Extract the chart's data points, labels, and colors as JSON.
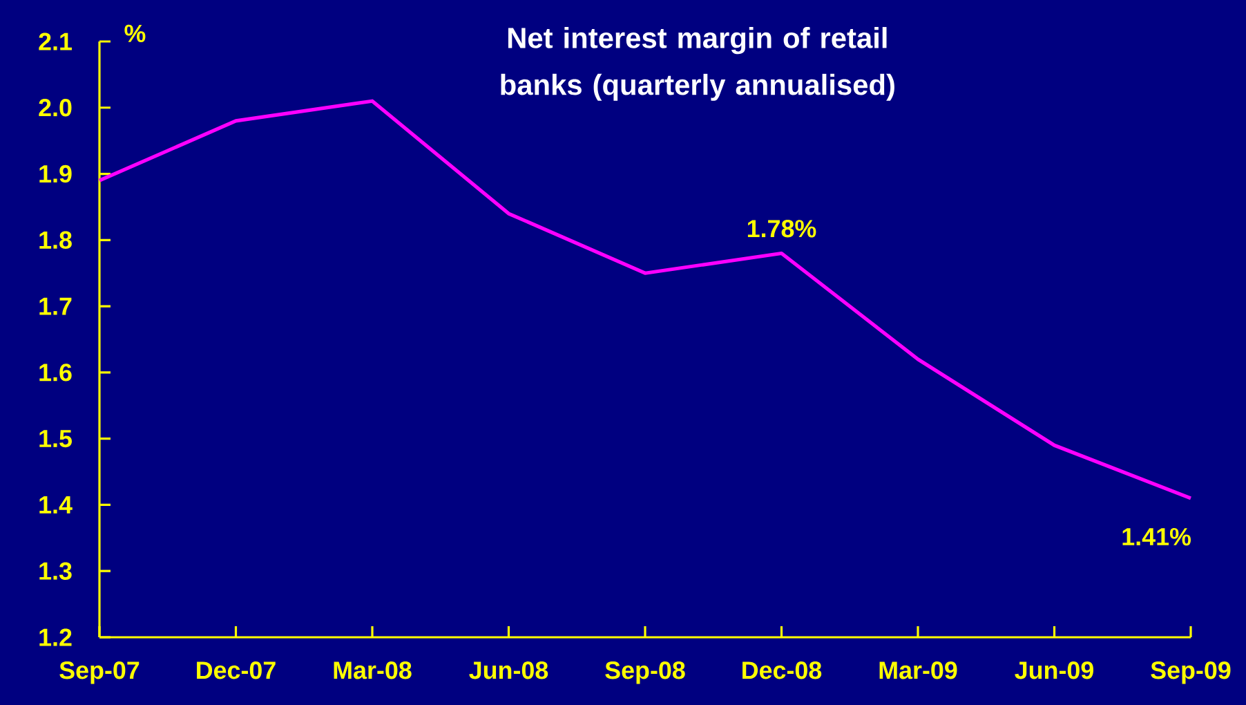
{
  "chart_data": {
    "type": "line",
    "title": "Net interest margin of retail banks (quarterly annualised)",
    "ylabel": "%",
    "categories": [
      "Sep-07",
      "Dec-07",
      "Mar-08",
      "Jun-08",
      "Sep-08",
      "Dec-08",
      "Mar-09",
      "Jun-09",
      "Sep-09"
    ],
    "series": [
      {
        "color": "#ff00ff",
        "values": [
          1.89,
          1.98,
          2.01,
          1.84,
          1.75,
          1.78,
          1.62,
          1.49,
          1.41
        ],
        "value_labels": [
          null,
          null,
          null,
          null,
          null,
          "1.78%",
          null,
          null,
          "1.41%"
        ]
      }
    ],
    "ylim": [
      1.2,
      2.1
    ],
    "yticks": [
      1.2,
      1.3,
      1.4,
      1.5,
      1.6,
      1.7,
      1.8,
      1.9,
      {
        "value": 2.0,
        "label": "2.0"
      },
      2.1
    ],
    "grid": false,
    "marker": "none",
    "line_style": "solid"
  }
}
